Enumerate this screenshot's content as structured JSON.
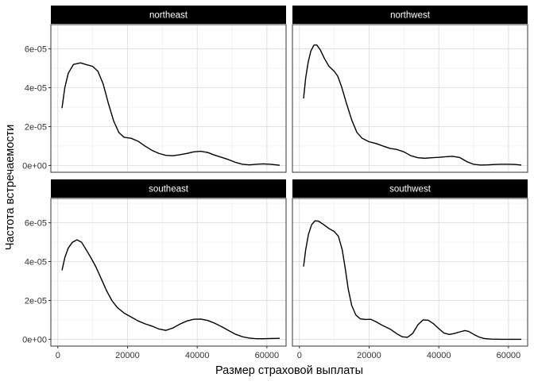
{
  "chart_data": {
    "type": "line",
    "xlabel": "Размер страховой выплаты",
    "ylabel": "Частота встречаемости",
    "xlim": [
      -2000,
      65500
    ],
    "ylim": [
      -3.5e-06,
      7.25e-05
    ],
    "x_ticks": [
      0,
      20000,
      40000,
      60000
    ],
    "x_tick_labels": [
      "0",
      "20000",
      "40000",
      "60000"
    ],
    "y_ticks": [
      0,
      2e-05,
      4e-05,
      6e-05
    ],
    "y_tick_labels": [
      "0e+00",
      "2e-05",
      "4e-05",
      "6e-05"
    ],
    "grid": true,
    "facets": [
      {
        "name": "northeast",
        "points": [
          [
            1200,
            2.95e-05
          ],
          [
            2000,
            4e-05
          ],
          [
            3000,
            4.75e-05
          ],
          [
            4500,
            5.2e-05
          ],
          [
            6500,
            5.28e-05
          ],
          [
            8000,
            5.2e-05
          ],
          [
            10000,
            5.1e-05
          ],
          [
            11500,
            4.85e-05
          ],
          [
            13000,
            4.2e-05
          ],
          [
            14500,
            3.2e-05
          ],
          [
            16000,
            2.3e-05
          ],
          [
            17500,
            1.7e-05
          ],
          [
            19000,
            1.45e-05
          ],
          [
            21000,
            1.4e-05
          ],
          [
            23000,
            1.25e-05
          ],
          [
            25000,
            1e-05
          ],
          [
            27000,
            7.8e-06
          ],
          [
            29000,
            6.2e-06
          ],
          [
            31000,
            5.2e-06
          ],
          [
            33000,
            5e-06
          ],
          [
            35000,
            5.5e-06
          ],
          [
            37000,
            6.2e-06
          ],
          [
            39000,
            7e-06
          ],
          [
            41000,
            7.3e-06
          ],
          [
            43000,
            6.7e-06
          ],
          [
            45000,
            5.3e-06
          ],
          [
            47000,
            4.2e-06
          ],
          [
            49000,
            3e-06
          ],
          [
            51000,
            1.6e-06
          ],
          [
            53000,
            6e-07
          ],
          [
            55000,
            3e-07
          ],
          [
            57000,
            6e-07
          ],
          [
            59000,
            8e-07
          ],
          [
            61000,
            6e-07
          ],
          [
            63700,
            1e-07
          ]
        ]
      },
      {
        "name": "northwest",
        "points": [
          [
            1200,
            3.45e-05
          ],
          [
            1800,
            4.5e-05
          ],
          [
            2500,
            5.3e-05
          ],
          [
            3300,
            5.9e-05
          ],
          [
            4200,
            6.2e-05
          ],
          [
            5000,
            6.2e-05
          ],
          [
            6000,
            5.95e-05
          ],
          [
            7200,
            5.5e-05
          ],
          [
            8500,
            5.1e-05
          ],
          [
            10000,
            4.85e-05
          ],
          [
            11000,
            4.6e-05
          ],
          [
            12200,
            4e-05
          ],
          [
            13500,
            3.2e-05
          ],
          [
            15000,
            2.35e-05
          ],
          [
            16500,
            1.7e-05
          ],
          [
            18000,
            1.4e-05
          ],
          [
            20000,
            1.22e-05
          ],
          [
            22000,
            1.13e-05
          ],
          [
            24000,
            1e-05
          ],
          [
            26000,
            8.8e-06
          ],
          [
            28000,
            8.2e-06
          ],
          [
            30000,
            7e-06
          ],
          [
            32000,
            5e-06
          ],
          [
            34000,
            4e-06
          ],
          [
            36000,
            3.7e-06
          ],
          [
            38000,
            4e-06
          ],
          [
            40000,
            4.2e-06
          ],
          [
            42000,
            4.5e-06
          ],
          [
            44000,
            4.7e-06
          ],
          [
            46000,
            4.1e-06
          ],
          [
            48000,
            2e-06
          ],
          [
            50000,
            6e-07
          ],
          [
            52000,
            2e-07
          ],
          [
            54000,
            3e-07
          ],
          [
            56000,
            5e-07
          ],
          [
            58000,
            6e-07
          ],
          [
            60000,
            6e-07
          ],
          [
            62000,
            5e-07
          ],
          [
            63700,
            2e-07
          ]
        ]
      },
      {
        "name": "southeast",
        "points": [
          [
            1200,
            3.55e-05
          ],
          [
            2000,
            4.2e-05
          ],
          [
            3000,
            4.7e-05
          ],
          [
            4200,
            5e-05
          ],
          [
            5500,
            5.12e-05
          ],
          [
            6800,
            5e-05
          ],
          [
            8000,
            4.65e-05
          ],
          [
            9500,
            4.2e-05
          ],
          [
            11000,
            3.7e-05
          ],
          [
            12500,
            3.1e-05
          ],
          [
            14000,
            2.5e-05
          ],
          [
            15500,
            2e-05
          ],
          [
            17000,
            1.65e-05
          ],
          [
            19000,
            1.35e-05
          ],
          [
            21000,
            1.15e-05
          ],
          [
            23000,
            9.5e-06
          ],
          [
            25000,
            8e-06
          ],
          [
            27000,
            6.8e-06
          ],
          [
            29000,
            5.3e-06
          ],
          [
            31000,
            4.6e-06
          ],
          [
            33000,
            5.8e-06
          ],
          [
            35000,
            7.8e-06
          ],
          [
            37000,
            9.4e-06
          ],
          [
            39000,
            1.03e-05
          ],
          [
            41000,
            1.04e-05
          ],
          [
            43000,
            9.7e-06
          ],
          [
            45000,
            8.3e-06
          ],
          [
            47000,
            6.5e-06
          ],
          [
            49000,
            4.5e-06
          ],
          [
            51000,
            2.6e-06
          ],
          [
            53000,
            1.3e-06
          ],
          [
            55000,
            6e-07
          ],
          [
            57000,
            3e-07
          ],
          [
            59000,
            3e-07
          ],
          [
            61000,
            4e-07
          ],
          [
            63700,
            5e-07
          ]
        ]
      },
      {
        "name": "southwest",
        "points": [
          [
            1200,
            3.75e-05
          ],
          [
            1800,
            4.6e-05
          ],
          [
            2600,
            5.4e-05
          ],
          [
            3500,
            5.9e-05
          ],
          [
            4500,
            6.1e-05
          ],
          [
            5500,
            6.08e-05
          ],
          [
            7000,
            5.9e-05
          ],
          [
            8500,
            5.7e-05
          ],
          [
            10000,
            5.55e-05
          ],
          [
            11200,
            5.3e-05
          ],
          [
            12300,
            4.6e-05
          ],
          [
            13200,
            3.6e-05
          ],
          [
            14000,
            2.6e-05
          ],
          [
            15000,
            1.75e-05
          ],
          [
            16200,
            1.25e-05
          ],
          [
            17500,
            1.05e-05
          ],
          [
            19000,
            1.02e-05
          ],
          [
            20500,
            1.03e-05
          ],
          [
            22000,
            9e-06
          ],
          [
            24000,
            7e-06
          ],
          [
            26000,
            5.3e-06
          ],
          [
            28000,
            2.8e-06
          ],
          [
            29500,
            1.3e-06
          ],
          [
            31000,
            1e-06
          ],
          [
            32500,
            3e-06
          ],
          [
            34000,
            7.5e-06
          ],
          [
            35500,
            1e-05
          ],
          [
            37000,
            9.8e-06
          ],
          [
            38500,
            8e-06
          ],
          [
            40000,
            5.5e-06
          ],
          [
            41500,
            3.2e-06
          ],
          [
            43000,
            2.5e-06
          ],
          [
            44500,
            3e-06
          ],
          [
            46000,
            3.8e-06
          ],
          [
            47500,
            4.5e-06
          ],
          [
            48500,
            4.1e-06
          ],
          [
            50000,
            2.6e-06
          ],
          [
            51500,
            1.2e-06
          ],
          [
            53000,
            4e-07
          ],
          [
            55000,
            1e-07
          ],
          [
            58000,
            0
          ],
          [
            61000,
            0
          ],
          [
            63700,
            0
          ]
        ]
      }
    ]
  }
}
